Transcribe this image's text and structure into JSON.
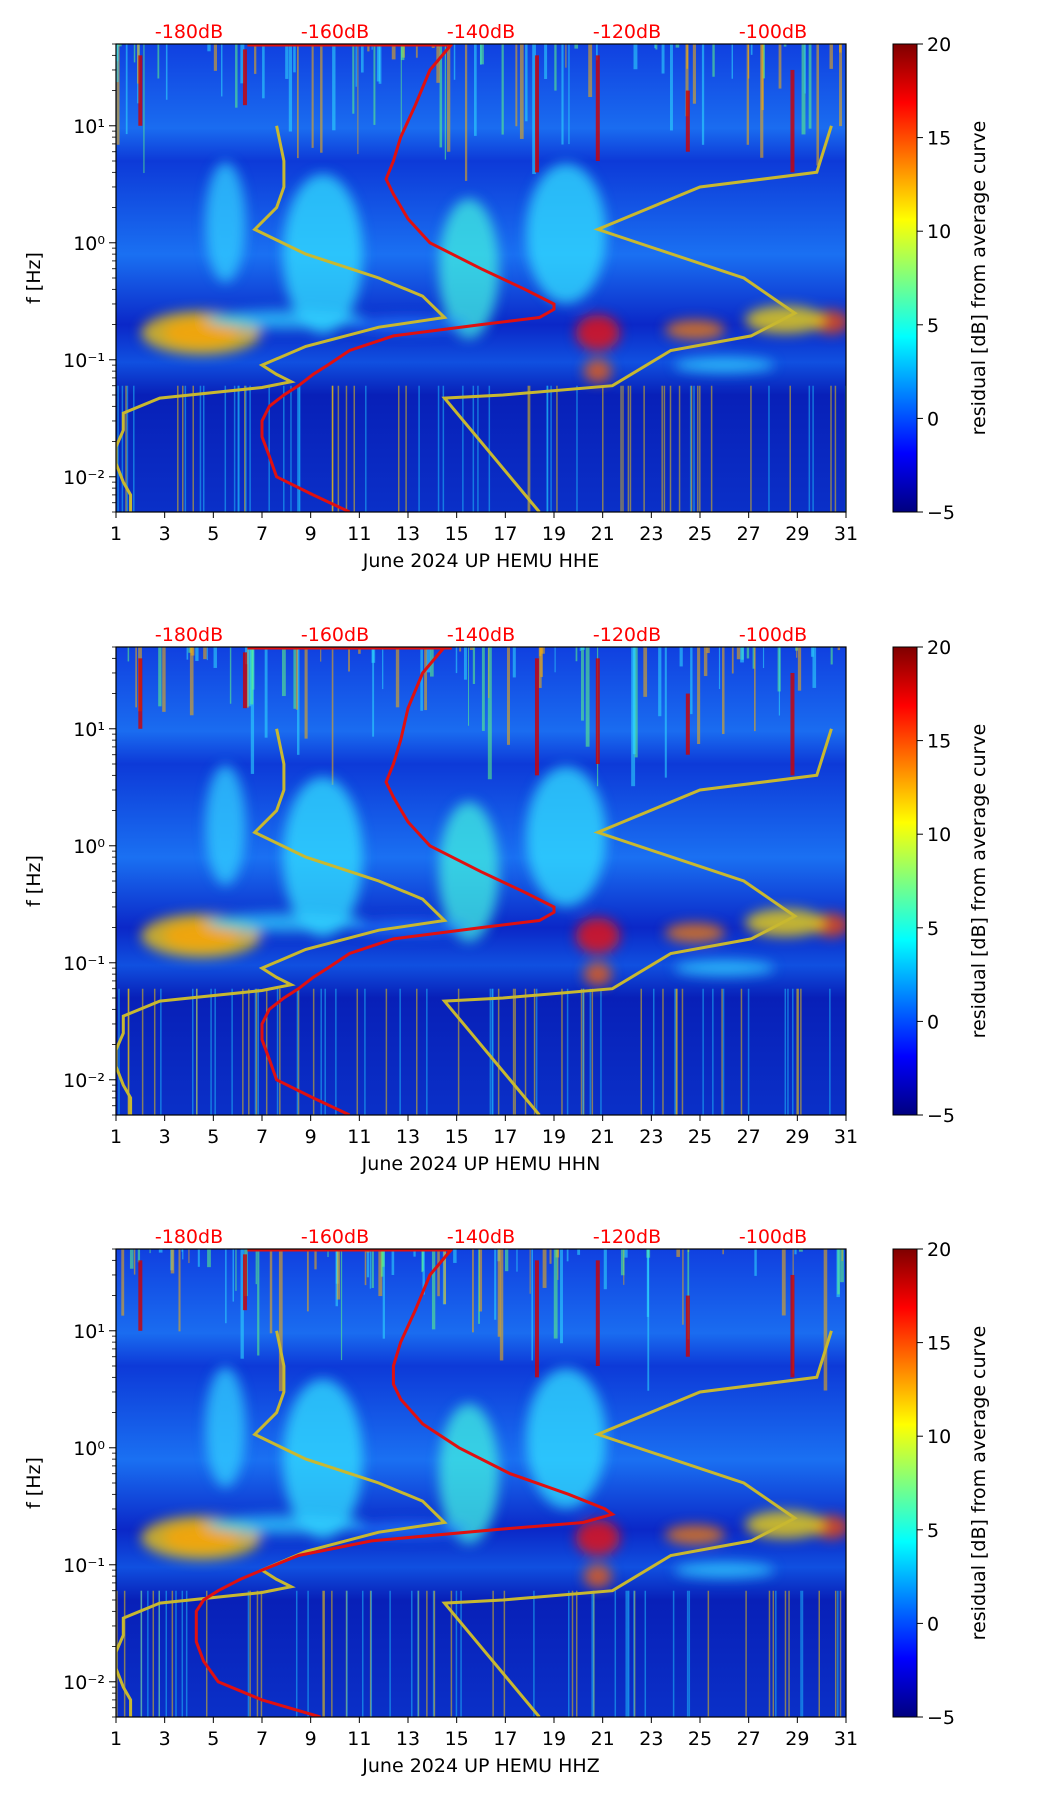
{
  "colors": {
    "ref_curve": "#e01010",
    "band_curve": "#c8b830",
    "db_label": "#ff0000",
    "colormap": [
      "#00007f",
      "#0000ff",
      "#007fff",
      "#00ffff",
      "#7fff7f",
      "#ffff00",
      "#ff7f00",
      "#ff0000",
      "#7f0000"
    ]
  },
  "chart_data": [
    {
      "type": "heatmap",
      "title": "",
      "xlabel": "June 2024 UP HEMU  HHE",
      "ylabel": "f [Hz]",
      "x_ticks": [
        "1",
        "3",
        "5",
        "7",
        "9",
        "11",
        "13",
        "15",
        "17",
        "19",
        "21",
        "23",
        "25",
        "27",
        "29",
        "31"
      ],
      "x_range": [
        1,
        31
      ],
      "y_ticks": [
        "10⁻²",
        "10⁻¹",
        "10⁰",
        "10¹"
      ],
      "y_range_hz": [
        0.005,
        50
      ],
      "top_db_labels": [
        "-180dB",
        "-160dB",
        "-140dB",
        "-120dB",
        "-100dB"
      ],
      "top_db_range": [
        -190,
        -90
      ],
      "colorbar": {
        "label": "residual [dB] from average curve",
        "ticks": [
          "20",
          "15",
          "10",
          "5",
          "0",
          "−5"
        ],
        "range": [
          -5,
          20
        ]
      },
      "ref_curve": {
        "name": "average PSD",
        "points": [
          [
            -144,
            50
          ],
          [
            -147,
            30
          ],
          [
            -149,
            15
          ],
          [
            -151,
            8
          ],
          [
            -152,
            5
          ],
          [
            -153,
            3.5
          ],
          [
            -152,
            2.6
          ],
          [
            -150,
            1.6
          ],
          [
            -147,
            1
          ],
          [
            -140,
            0.6
          ],
          [
            -134,
            0.4
          ],
          [
            -130,
            0.3
          ],
          [
            -130,
            0.27
          ],
          [
            -132,
            0.23
          ],
          [
            -140,
            0.2
          ],
          [
            -152,
            0.16
          ],
          [
            -158,
            0.12
          ],
          [
            -161,
            0.09
          ],
          [
            -163,
            0.075
          ],
          [
            -165,
            0.06
          ],
          [
            -167,
            0.05
          ],
          [
            -169,
            0.04
          ],
          [
            -170,
            0.03
          ],
          [
            -170,
            0.022
          ],
          [
            -169,
            0.015
          ],
          [
            -168,
            0.01
          ],
          [
            -163,
            0.007
          ],
          [
            -158,
            0.005
          ]
        ]
      },
      "band_curves": [
        {
          "name": "lower NM",
          "points": [
            [
              -168,
              10
            ],
            [
              -167,
              5
            ],
            [
              -167,
              3
            ],
            [
              -168,
              2
            ],
            [
              -171,
              1.3
            ],
            [
              -164,
              0.8
            ],
            [
              -154,
              0.5
            ],
            [
              -148,
              0.35
            ],
            [
              -145,
              0.23
            ],
            [
              -154,
              0.19
            ],
            [
              -164,
              0.13
            ],
            [
              -170,
              0.09
            ],
            [
              -168,
              0.075
            ],
            [
              -166,
              0.065
            ],
            [
              -170,
              0.058
            ],
            [
              -184,
              0.047
            ],
            [
              -189,
              0.035
            ],
            [
              -189,
              0.025
            ],
            [
              -190,
              0.018
            ],
            [
              -190,
              0.013
            ],
            [
              -189,
              0.009
            ],
            [
              -188,
              0.007
            ],
            [
              -188,
              0.005
            ]
          ]
        },
        {
          "name": "upper NM",
          "points": [
            [
              -92,
              10
            ],
            [
              -94,
              4
            ],
            [
              -110,
              3
            ],
            [
              -124,
              1.3
            ],
            [
              -104,
              0.5
            ],
            [
              -97,
              0.25
            ],
            [
              -103,
              0.16
            ],
            [
              -114,
              0.12
            ],
            [
              -122,
              0.06
            ],
            [
              -137,
              0.05
            ],
            [
              -145,
              0.047
            ],
            [
              -132,
              0.005
            ]
          ]
        }
      ]
    },
    {
      "type": "heatmap",
      "title": "",
      "xlabel": "June 2024 UP HEMU  HHN",
      "ylabel": "f [Hz]",
      "x_ticks": [
        "1",
        "3",
        "5",
        "7",
        "9",
        "11",
        "13",
        "15",
        "17",
        "19",
        "21",
        "23",
        "25",
        "27",
        "29",
        "31"
      ],
      "x_range": [
        1,
        31
      ],
      "y_ticks": [
        "10⁻²",
        "10⁻¹",
        "10⁰",
        "10¹"
      ],
      "y_range_hz": [
        0.005,
        50
      ],
      "top_db_labels": [
        "-180dB",
        "-160dB",
        "-140dB",
        "-120dB",
        "-100dB"
      ],
      "top_db_range": [
        -190,
        -90
      ],
      "colorbar": {
        "label": "residual [dB] from average curve",
        "ticks": [
          "20",
          "15",
          "10",
          "5",
          "0",
          "−5"
        ],
        "range": [
          -5,
          20
        ]
      },
      "ref_curve": {
        "name": "average PSD",
        "points": [
          [
            -145,
            50
          ],
          [
            -148,
            30
          ],
          [
            -150,
            15
          ],
          [
            -151,
            8
          ],
          [
            -152,
            5
          ],
          [
            -153,
            3.5
          ],
          [
            -152,
            2.6
          ],
          [
            -150,
            1.6
          ],
          [
            -147,
            1
          ],
          [
            -140,
            0.6
          ],
          [
            -134,
            0.4
          ],
          [
            -130,
            0.3
          ],
          [
            -130,
            0.27
          ],
          [
            -132,
            0.23
          ],
          [
            -140,
            0.2
          ],
          [
            -152,
            0.16
          ],
          [
            -158,
            0.12
          ],
          [
            -161,
            0.09
          ],
          [
            -163,
            0.075
          ],
          [
            -165,
            0.06
          ],
          [
            -167,
            0.05
          ],
          [
            -169,
            0.04
          ],
          [
            -170,
            0.03
          ],
          [
            -170,
            0.022
          ],
          [
            -169,
            0.015
          ],
          [
            -168,
            0.01
          ],
          [
            -163,
            0.007
          ],
          [
            -158,
            0.005
          ]
        ]
      },
      "band_curves": [
        {
          "name": "lower NM",
          "points": [
            [
              -168,
              10
            ],
            [
              -167,
              5
            ],
            [
              -167,
              3
            ],
            [
              -168,
              2
            ],
            [
              -171,
              1.3
            ],
            [
              -164,
              0.8
            ],
            [
              -154,
              0.5
            ],
            [
              -148,
              0.35
            ],
            [
              -145,
              0.23
            ],
            [
              -154,
              0.19
            ],
            [
              -164,
              0.13
            ],
            [
              -170,
              0.09
            ],
            [
              -168,
              0.075
            ],
            [
              -166,
              0.065
            ],
            [
              -170,
              0.058
            ],
            [
              -184,
              0.047
            ],
            [
              -189,
              0.035
            ],
            [
              -189,
              0.025
            ],
            [
              -190,
              0.018
            ],
            [
              -190,
              0.013
            ],
            [
              -189,
              0.009
            ],
            [
              -188,
              0.007
            ],
            [
              -188,
              0.005
            ]
          ]
        },
        {
          "name": "upper NM",
          "points": [
            [
              -92,
              10
            ],
            [
              -94,
              4
            ],
            [
              -110,
              3
            ],
            [
              -124,
              1.3
            ],
            [
              -104,
              0.5
            ],
            [
              -97,
              0.25
            ],
            [
              -103,
              0.16
            ],
            [
              -114,
              0.12
            ],
            [
              -122,
              0.06
            ],
            [
              -137,
              0.05
            ],
            [
              -145,
              0.047
            ],
            [
              -132,
              0.005
            ]
          ]
        }
      ]
    },
    {
      "type": "heatmap",
      "title": "",
      "xlabel": "June 2024 UP HEMU  HHZ",
      "ylabel": "f [Hz]",
      "x_ticks": [
        "1",
        "3",
        "5",
        "7",
        "9",
        "11",
        "13",
        "15",
        "17",
        "19",
        "21",
        "23",
        "25",
        "27",
        "29",
        "31"
      ],
      "x_range": [
        1,
        31
      ],
      "y_ticks": [
        "10⁻²",
        "10⁻¹",
        "10⁰",
        "10¹"
      ],
      "y_range_hz": [
        0.005,
        50
      ],
      "top_db_labels": [
        "-180dB",
        "-160dB",
        "-140dB",
        "-120dB",
        "-100dB"
      ],
      "top_db_range": [
        -190,
        -90
      ],
      "colorbar": {
        "label": "residual [dB] from average curve",
        "ticks": [
          "20",
          "15",
          "10",
          "5",
          "0",
          "−5"
        ],
        "range": [
          -5,
          20
        ]
      },
      "ref_curve": {
        "name": "average PSD",
        "points": [
          [
            -144,
            50
          ],
          [
            -147,
            30
          ],
          [
            -149,
            15
          ],
          [
            -151,
            8
          ],
          [
            -152,
            5
          ],
          [
            -152,
            3.5
          ],
          [
            -151,
            2.6
          ],
          [
            -148,
            1.6
          ],
          [
            -143,
            1
          ],
          [
            -136,
            0.6
          ],
          [
            -128,
            0.4
          ],
          [
            -123,
            0.3
          ],
          [
            -122,
            0.27
          ],
          [
            -126,
            0.23
          ],
          [
            -138,
            0.2
          ],
          [
            -155,
            0.16
          ],
          [
            -165,
            0.12
          ],
          [
            -170,
            0.09
          ],
          [
            -173,
            0.075
          ],
          [
            -176,
            0.06
          ],
          [
            -178,
            0.05
          ],
          [
            -179,
            0.04
          ],
          [
            -179,
            0.03
          ],
          [
            -179,
            0.022
          ],
          [
            -178,
            0.015
          ],
          [
            -176,
            0.01
          ],
          [
            -170,
            0.007
          ],
          [
            -162,
            0.005
          ]
        ]
      },
      "band_curves": [
        {
          "name": "lower NM",
          "points": [
            [
              -168,
              10
            ],
            [
              -167,
              5
            ],
            [
              -167,
              3
            ],
            [
              -168,
              2
            ],
            [
              -171,
              1.3
            ],
            [
              -164,
              0.8
            ],
            [
              -154,
              0.5
            ],
            [
              -148,
              0.35
            ],
            [
              -145,
              0.23
            ],
            [
              -154,
              0.19
            ],
            [
              -164,
              0.13
            ],
            [
              -170,
              0.09
            ],
            [
              -168,
              0.075
            ],
            [
              -166,
              0.065
            ],
            [
              -170,
              0.058
            ],
            [
              -184,
              0.047
            ],
            [
              -189,
              0.035
            ],
            [
              -189,
              0.025
            ],
            [
              -190,
              0.018
            ],
            [
              -190,
              0.013
            ],
            [
              -189,
              0.009
            ],
            [
              -188,
              0.007
            ],
            [
              -188,
              0.005
            ]
          ]
        },
        {
          "name": "upper NM",
          "points": [
            [
              -92,
              10
            ],
            [
              -94,
              4
            ],
            [
              -110,
              3
            ],
            [
              -124,
              1.3
            ],
            [
              -104,
              0.5
            ],
            [
              -97,
              0.25
            ],
            [
              -103,
              0.16
            ],
            [
              -114,
              0.12
            ],
            [
              -122,
              0.06
            ],
            [
              -137,
              0.05
            ],
            [
              -145,
              0.047
            ],
            [
              -132,
              0.005
            ]
          ]
        }
      ]
    }
  ]
}
